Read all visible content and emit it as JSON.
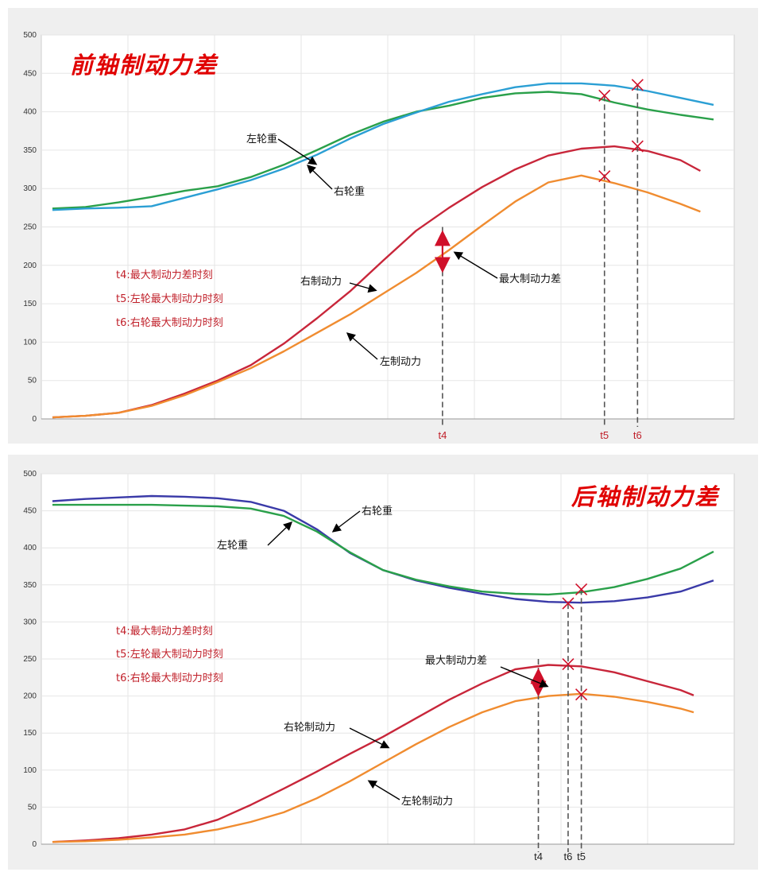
{
  "chart_data": [
    {
      "type": "line",
      "title": "前轴制动力差",
      "ylim": [
        0,
        500
      ],
      "yticks": [
        "0",
        "50",
        "100",
        "150",
        "200",
        "250",
        "300",
        "350",
        "400",
        "450",
        "500"
      ],
      "grid": true,
      "series": [
        {
          "name": "左轮重",
          "color": "#2aa04a",
          "x": [
            0,
            5,
            10,
            15,
            20,
            25,
            30,
            35,
            40,
            45,
            50,
            55,
            60,
            65,
            70,
            75,
            80,
            85,
            90,
            95,
            100
          ],
          "y": [
            274,
            276,
            282,
            289,
            297,
            303,
            315,
            331,
            350,
            370,
            387,
            400,
            408,
            418,
            424,
            426,
            423,
            412,
            403,
            396,
            390
          ]
        },
        {
          "name": "右轮重",
          "color": "#2b9fd4",
          "x": [
            0,
            5,
            10,
            15,
            20,
            25,
            30,
            35,
            40,
            45,
            50,
            55,
            60,
            65,
            70,
            75,
            80,
            85,
            90,
            95,
            100
          ],
          "y": [
            272,
            274,
            275,
            277,
            288,
            299,
            311,
            326,
            344,
            365,
            384,
            399,
            413,
            423,
            432,
            437,
            437,
            434,
            427,
            418,
            409
          ]
        },
        {
          "name": "右制动力",
          "color": "#c8263a",
          "x": [
            0,
            5,
            10,
            15,
            20,
            25,
            30,
            35,
            40,
            45,
            50,
            55,
            60,
            65,
            70,
            75,
            80,
            85,
            90,
            95,
            98
          ],
          "y": [
            2,
            4,
            8,
            18,
            33,
            50,
            70,
            98,
            131,
            166,
            206,
            245,
            275,
            302,
            325,
            343,
            352,
            355,
            349,
            337,
            323
          ]
        },
        {
          "name": "左制动力",
          "color": "#f08c30",
          "x": [
            0,
            5,
            10,
            15,
            20,
            25,
            30,
            35,
            40,
            45,
            50,
            55,
            60,
            65,
            70,
            75,
            80,
            85,
            90,
            95,
            98
          ],
          "y": [
            2,
            4,
            8,
            17,
            31,
            48,
            66,
            88,
            112,
            136,
            163,
            190,
            220,
            252,
            283,
            308,
            317,
            307,
            295,
            280,
            270
          ]
        }
      ],
      "annotations": {
        "left_weight": "左轮重",
        "right_weight": "右轮重",
        "right_brake": "右制动力",
        "left_brake": "左制动力",
        "max_diff": "最大制动力差"
      },
      "notes": [
        "t4:最大制动力差时刻",
        "t5:左轮最大制动力时刻",
        "t6:右轮最大制动力时刻"
      ],
      "markers": [
        {
          "label": "t4",
          "x": 59
        },
        {
          "label": "t5",
          "x": 83.5
        },
        {
          "label": "t6",
          "x": 88.5
        }
      ],
      "crosses": [
        {
          "x": 83.5,
          "y": 421
        },
        {
          "x": 88.5,
          "y": 435
        },
        {
          "x": 88.5,
          "y": 355
        },
        {
          "x": 83.5,
          "y": 316
        }
      ],
      "max_diff_arrow": {
        "x": 59,
        "y_top": 248,
        "y_bottom": 188
      }
    },
    {
      "type": "line",
      "title": "后轴制动力差",
      "ylim": [
        0,
        500
      ],
      "yticks": [
        "0",
        "50",
        "100",
        "150",
        "200",
        "250",
        "300",
        "350",
        "400",
        "450",
        "500"
      ],
      "grid": true,
      "series": [
        {
          "name": "右轮重",
          "color": "#3a3aa8",
          "x": [
            0,
            5,
            10,
            15,
            20,
            25,
            30,
            35,
            40,
            45,
            50,
            55,
            60,
            65,
            70,
            75,
            80,
            85,
            90,
            95,
            100
          ],
          "y": [
            463,
            466,
            468,
            470,
            469,
            467,
            462,
            450,
            425,
            393,
            370,
            356,
            346,
            338,
            331,
            327,
            326,
            328,
            333,
            341,
            356
          ]
        },
        {
          "name": "左轮重",
          "color": "#2aa04a",
          "x": [
            0,
            5,
            10,
            15,
            20,
            25,
            30,
            35,
            40,
            45,
            50,
            55,
            60,
            65,
            70,
            75,
            80,
            85,
            90,
            95,
            100
          ],
          "y": [
            458,
            458,
            458,
            458,
            457,
            456,
            453,
            443,
            422,
            394,
            370,
            357,
            348,
            341,
            338,
            337,
            340,
            347,
            358,
            372,
            395
          ]
        },
        {
          "name": "右轮制动力",
          "color": "#c8263a",
          "x": [
            0,
            5,
            10,
            15,
            20,
            25,
            30,
            35,
            40,
            45,
            50,
            55,
            60,
            65,
            70,
            75,
            80,
            85,
            90,
            95,
            97
          ],
          "y": [
            3,
            5,
            8,
            13,
            20,
            33,
            53,
            75,
            98,
            122,
            145,
            170,
            195,
            217,
            236,
            242,
            240,
            232,
            220,
            208,
            201
          ]
        },
        {
          "name": "左轮制动力",
          "color": "#f08c30",
          "x": [
            0,
            5,
            10,
            15,
            20,
            25,
            30,
            35,
            40,
            45,
            50,
            55,
            60,
            65,
            70,
            75,
            80,
            85,
            90,
            95,
            97
          ],
          "y": [
            3,
            4,
            6,
            9,
            13,
            20,
            30,
            43,
            62,
            85,
            110,
            135,
            158,
            178,
            193,
            200,
            203,
            199,
            192,
            183,
            178
          ]
        }
      ],
      "annotations": {
        "right_weight": "右轮重",
        "left_weight": "左轮重",
        "max_diff": "最大制动力差",
        "right_brake": "右轮制动力",
        "left_brake": "左轮制动力"
      },
      "notes": [
        "t4:最大制动力差时刻",
        "t5:左轮最大制动力时刻",
        "t6:右轮最大制动力时刻"
      ],
      "markers": [
        {
          "label": "t4",
          "x": 73.5
        },
        {
          "label": "t6",
          "x": 78
        },
        {
          "label": "t5",
          "x": 80
        }
      ],
      "crosses": [
        {
          "x": 78,
          "y": 325
        },
        {
          "x": 80,
          "y": 344
        },
        {
          "x": 78,
          "y": 243
        },
        {
          "x": 80,
          "y": 202
        }
      ],
      "max_diff_arrow": {
        "x": 73.5,
        "y_top": 240,
        "y_bottom": 197
      }
    }
  ]
}
